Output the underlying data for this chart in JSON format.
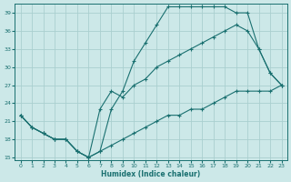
{
  "background_color": "#cce8e8",
  "grid_color": "#aacfcf",
  "line_color": "#1a7070",
  "xlabel": "Humidex (Indice chaleur)",
  "xlim": [
    -0.5,
    23.5
  ],
  "ylim": [
    14.5,
    40.5
  ],
  "yticks": [
    15,
    18,
    21,
    24,
    27,
    30,
    33,
    36,
    39
  ],
  "xticks": [
    0,
    1,
    2,
    3,
    4,
    5,
    6,
    7,
    8,
    9,
    10,
    11,
    12,
    13,
    14,
    15,
    16,
    17,
    18,
    19,
    20,
    21,
    22,
    23
  ],
  "curve_upper_x": [
    0,
    1,
    2,
    3,
    4,
    5,
    6,
    7,
    8,
    9,
    10,
    11,
    12,
    13,
    14,
    15,
    16,
    17,
    18,
    19,
    20,
    21,
    22,
    23
  ],
  "curve_upper_y": [
    22,
    20,
    19,
    18,
    18,
    16,
    15,
    16,
    23,
    26,
    31,
    34,
    37,
    40,
    40,
    40,
    40,
    40,
    40,
    39,
    39,
    33,
    29,
    27
  ],
  "curve_mid_x": [
    0,
    1,
    2,
    3,
    4,
    5,
    6,
    7,
    8,
    9,
    10,
    11,
    12,
    13,
    14,
    15,
    16,
    17,
    18,
    19,
    20,
    21,
    22,
    23
  ],
  "curve_mid_y": [
    22,
    20,
    19,
    18,
    18,
    16,
    15,
    23,
    26,
    25,
    27,
    28,
    30,
    31,
    32,
    33,
    34,
    35,
    36,
    37,
    36,
    33,
    29,
    27
  ],
  "curve_low_x": [
    0,
    1,
    2,
    3,
    4,
    5,
    6,
    7,
    8,
    9,
    10,
    11,
    12,
    13,
    14,
    15,
    16,
    17,
    18,
    19,
    20,
    21,
    22,
    23
  ],
  "curve_low_y": [
    22,
    20,
    19,
    18,
    18,
    16,
    15,
    16,
    17,
    18,
    19,
    20,
    21,
    22,
    22,
    23,
    23,
    24,
    25,
    26,
    26,
    26,
    26,
    27
  ]
}
